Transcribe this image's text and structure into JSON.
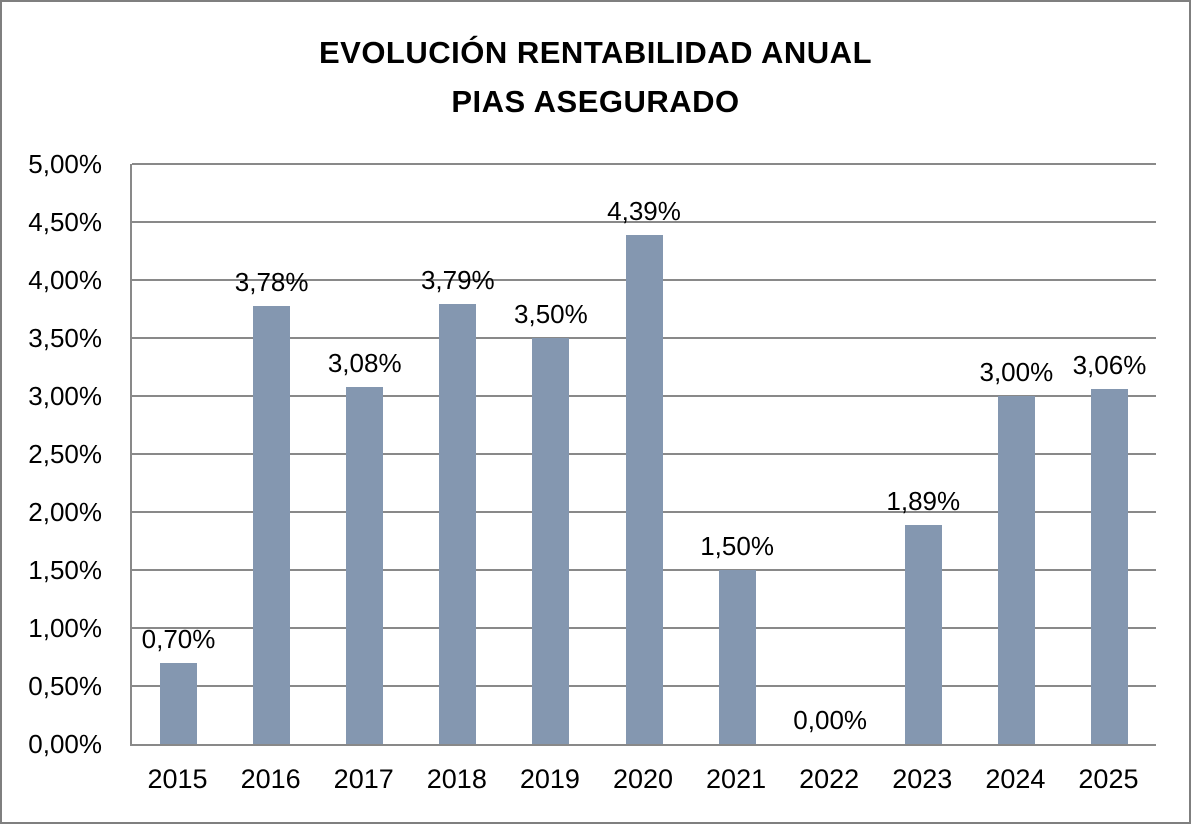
{
  "chart_data": {
    "type": "bar",
    "title": "EVOLUCIÓN RENTABILIDAD ANUAL PIAS ASEGURADO",
    "title_lines": [
      "EVOLUCIÓN RENTABILIDAD ANUAL",
      "PIAS ASEGURADO"
    ],
    "categories": [
      "2015",
      "2016",
      "2017",
      "2018",
      "2019",
      "2020",
      "2021",
      "2022",
      "2023",
      "2024",
      "2025"
    ],
    "values": [
      0.7,
      3.78,
      3.08,
      3.79,
      3.5,
      4.39,
      1.5,
      0.0,
      1.89,
      3.0,
      3.06
    ],
    "data_labels": [
      "0,70%",
      "3,78%",
      "3,08%",
      "3,79%",
      "3,50%",
      "4,39%",
      "1,50%",
      "0,00%",
      "1,89%",
      "3,00%",
      "3,06%"
    ],
    "y_ticks": [
      {
        "value": 0.0,
        "label": "0,00%"
      },
      {
        "value": 0.5,
        "label": "0,50%"
      },
      {
        "value": 1.0,
        "label": "1,00%"
      },
      {
        "value": 1.5,
        "label": "1,50%"
      },
      {
        "value": 2.0,
        "label": "2,00%"
      },
      {
        "value": 2.5,
        "label": "2,50%"
      },
      {
        "value": 3.0,
        "label": "3,00%"
      },
      {
        "value": 3.5,
        "label": "3,50%"
      },
      {
        "value": 4.0,
        "label": "4,00%"
      },
      {
        "value": 4.5,
        "label": "4,50%"
      },
      {
        "value": 5.0,
        "label": "5,00%"
      }
    ],
    "ylim": [
      0,
      5
    ],
    "xlabel": "",
    "ylabel": "",
    "grid": true,
    "legend_position": "none",
    "bar_color": "#8497B0",
    "grid_color": "#898989",
    "axis_color": "#898989",
    "text_color": "#000000",
    "background_color": "#FFFFFF",
    "border_color": "#7F7F7F"
  }
}
